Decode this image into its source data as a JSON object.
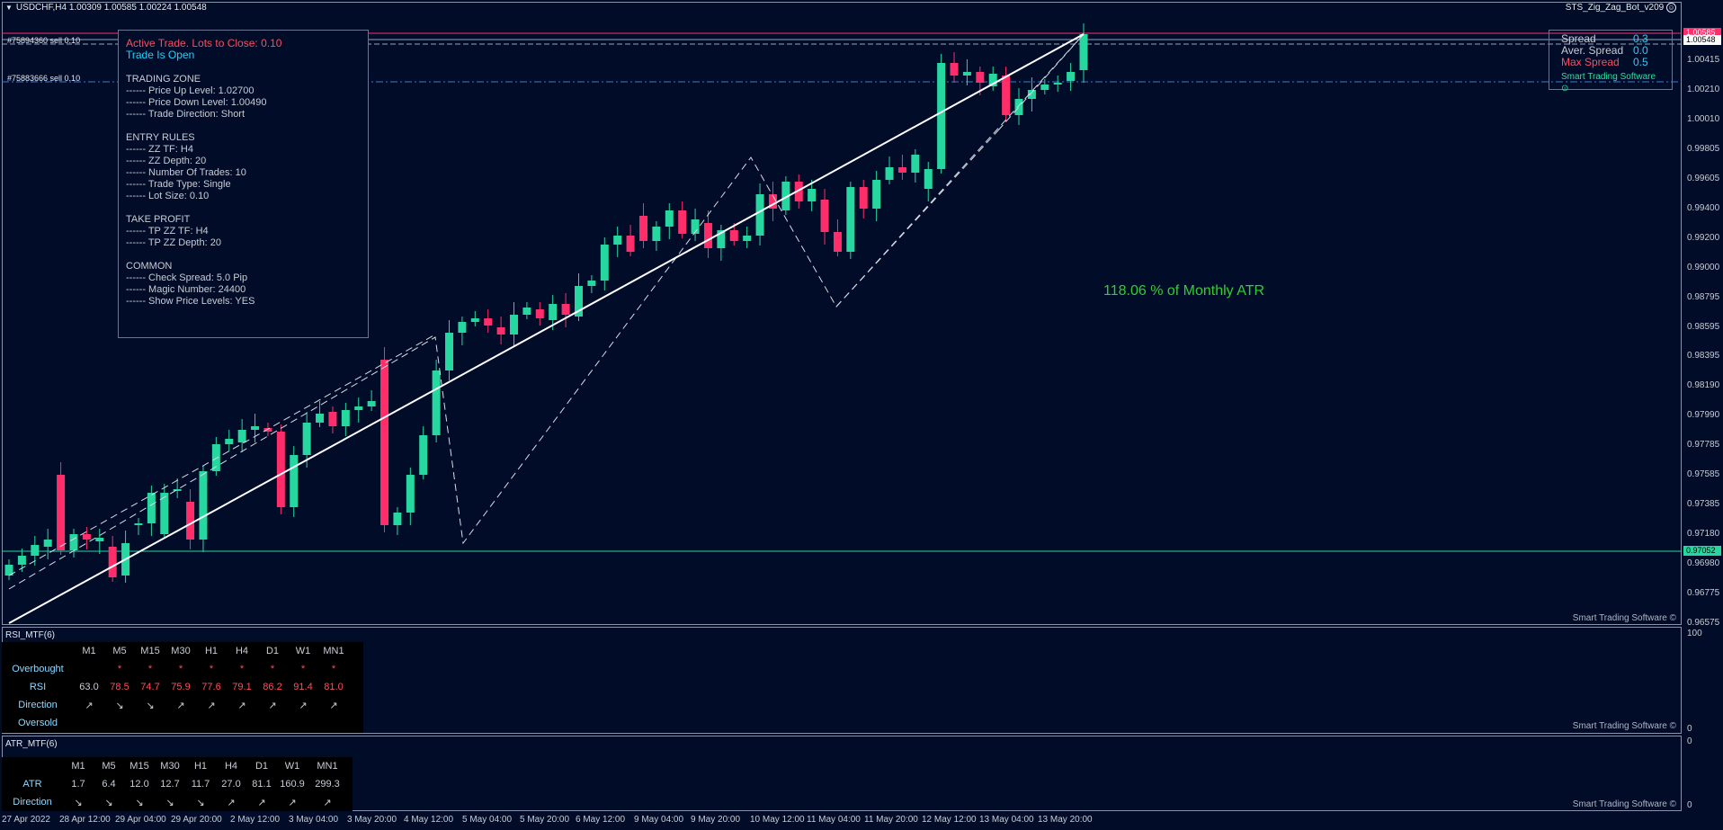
{
  "window": {
    "title": "USDCHF,H4  1.00309 1.00585 1.00224 1.00548",
    "ea_name": "STS_Zig_Zag_Bot_v209",
    "smiley": "☺"
  },
  "info_panel": {
    "active_trade": "Active Trade. Lots to Close: 0.10",
    "trade_status": "Trade Is Open",
    "sections": [
      {
        "title": "TRADING ZONE",
        "rows": [
          "------  Price Up Level: 1.02700",
          "------  Price Down Level: 1.00490",
          "------  Trade Direction: Short"
        ]
      },
      {
        "title": "ENTRY RULES",
        "rows": [
          "------  ZZ TF: H4",
          "------  ZZ Depth: 20",
          "------  Number Of Trades: 10",
          "------  Trade Type: Single",
          "------  Lot Size: 0.10"
        ]
      },
      {
        "title": "TAKE PROFIT",
        "rows": [
          "------  TP ZZ TF: H4",
          "------  TP ZZ Depth: 20"
        ]
      },
      {
        "title": "COMMON",
        "rows": [
          "------  Check Spread: 5.0 Pip",
          "------  Magic Number: 24400",
          "------  Show Price Levels: YES"
        ]
      }
    ]
  },
  "spread_panel": {
    "spread_label": "Spread",
    "spread_value": "0.3",
    "aver_label": "Aver. Spread",
    "aver_value": "0.0",
    "max_label": "Max Spread",
    "max_value": "0.5",
    "brand": "Smart Trading Software ⊙"
  },
  "atr_note": "118.06 % of Monthly ATR",
  "order_labels": [
    "#75894360 sell 0.10",
    "#75883666 sell 0.10"
  ],
  "brand_footer": "Smart Trading Software ©",
  "price_axis": [
    "1.00415",
    "1.00210",
    "1.00010",
    "0.99805",
    "0.99605",
    "0.99400",
    "0.99200",
    "0.99000",
    "0.98795",
    "0.98595",
    "0.98395",
    "0.98190",
    "0.97990",
    "0.97785",
    "0.97585",
    "0.97385",
    "0.97180",
    "0.96980",
    "0.96775",
    "0.96575"
  ],
  "price_badges": {
    "current": "1.00548",
    "top": "1.00585",
    "line": "0.97052"
  },
  "time_axis": [
    "27 Apr 2022",
    "28 Apr 12:00",
    "29 Apr 04:00",
    "29 Apr 20:00",
    "2 May 12:00",
    "3 May 04:00",
    "3 May 20:00",
    "4 May 12:00",
    "5 May 04:00",
    "5 May 20:00",
    "6 May 12:00",
    "9 May 04:00",
    "9 May 20:00",
    "10 May 12:00",
    "11 May 04:00",
    "11 May 20:00",
    "12 May 12:00",
    "13 May 04:00",
    "13 May 20:00"
  ],
  "rsi": {
    "title": "RSI_MTF(6)",
    "timeframes": [
      "M1",
      "M5",
      "M15",
      "M30",
      "H1",
      "H4",
      "D1",
      "W1",
      "MN1"
    ],
    "overbought_label": "Overbought",
    "overbought": [
      "",
      "*",
      "*",
      "*",
      "*",
      "*",
      "*",
      "*",
      "*"
    ],
    "rsi_label": "RSI",
    "values": [
      "63.0",
      "78.5",
      "74.7",
      "75.9",
      "77.6",
      "79.1",
      "86.2",
      "91.4",
      "81.0"
    ],
    "direction_label": "Direction",
    "direction": [
      "↗",
      "↘",
      "↘",
      "↗",
      "↗",
      "↗",
      "↗",
      "↗",
      "↗"
    ],
    "oversold_label": "Oversold",
    "axis_top": "100",
    "axis_bottom": "0"
  },
  "atr": {
    "title": "ATR_MTF(6)",
    "timeframes": [
      "M1",
      "M5",
      "M15",
      "M30",
      "H1",
      "H4",
      "D1",
      "W1",
      "MN1"
    ],
    "atr_label": "ATR",
    "values": [
      "1.7",
      "6.4",
      "12.0",
      "12.7",
      "11.7",
      "27.0",
      "81.1",
      "160.9",
      "299.3"
    ],
    "direction_label": "Direction",
    "direction": [
      "↘",
      "↘",
      "↘",
      "↘",
      "↘",
      "↗",
      "↗",
      "↗",
      "↗"
    ],
    "axis_top": "0",
    "axis_bottom": "0"
  },
  "colors": {
    "bull": "#26d7a0",
    "bear": "#ff2e6b",
    "bg": "#000c28",
    "grid": "#6b7591"
  }
}
